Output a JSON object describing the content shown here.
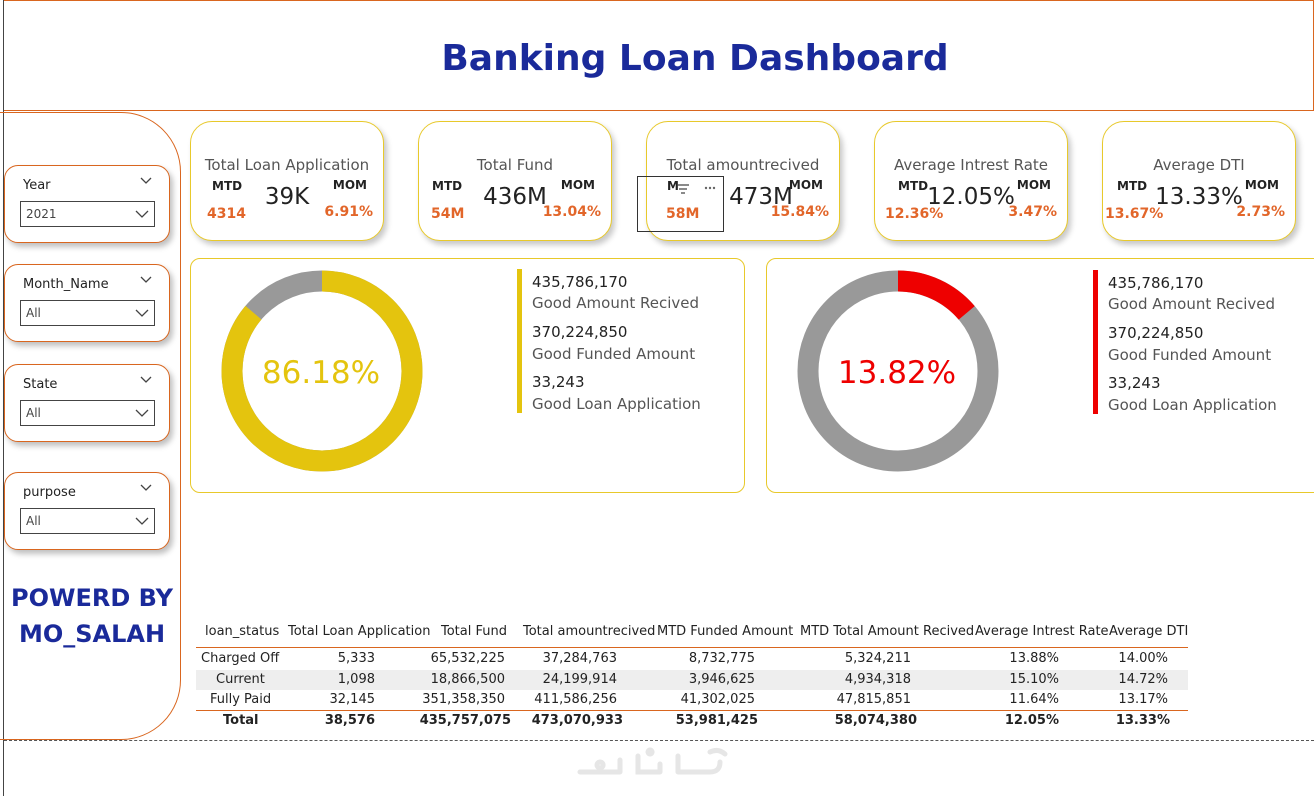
{
  "header": {
    "title": "Banking Loan Dashboard"
  },
  "slicers": [
    {
      "label": "Year",
      "value": "2021"
    },
    {
      "label": "Month_Name",
      "value": "All"
    },
    {
      "label": "State",
      "value": "All"
    },
    {
      "label": "purpose",
      "value": "All"
    }
  ],
  "powered_by": {
    "line1": "POWERD BY",
    "line2": "MO_SALAH"
  },
  "kpis": [
    {
      "title": "Total Loan Application",
      "mtd_label": "MTD",
      "mom_label": "MOM",
      "value": "39K",
      "mtd": "4314",
      "mom": "6.91%"
    },
    {
      "title": "Total Fund",
      "mtd_label": "MTD",
      "mom_label": "MOM",
      "value": "436M",
      "mtd": "54M",
      "mom": "13.04%"
    },
    {
      "title": "Total amountrecived",
      "mtd_label": "M",
      "mom_label": "MOM",
      "value": "473M",
      "mtd": "58M",
      "mom": "15.84%"
    },
    {
      "title": "Average Intrest Rate",
      "mtd_label": "MTD",
      "mom_label": "MOM",
      "value": "12.05%",
      "mtd": "12.36%",
      "mom": "3.47%"
    },
    {
      "title": "Average DTI",
      "mtd_label": "MTD",
      "mom_label": "MOM",
      "value": "13.33%",
      "mtd": "13.67%",
      "mom": "2.73%"
    }
  ],
  "good_loan": {
    "percent_label": "86.18%",
    "fraction": 0.8618,
    "color": "#e4c40e",
    "rest_color": "#999999",
    "stats": [
      {
        "value": "435,786,170",
        "label": "Good Amount Recived"
      },
      {
        "value": "370,224,850",
        "label": "Good Funded Amount"
      },
      {
        "value": "33,243",
        "label": "Good Loan Application"
      }
    ]
  },
  "bad_loan": {
    "percent_label": "13.82%",
    "fraction": 0.1382,
    "color": "#ee0000",
    "rest_color": "#999999",
    "stats": [
      {
        "value": "435,786,170",
        "label": "Good Amount Recived"
      },
      {
        "value": "370,224,850",
        "label": "Good Funded Amount"
      },
      {
        "value": "33,243",
        "label": "Good Loan Application"
      }
    ]
  },
  "table": {
    "columns": [
      "loan_status",
      "Total Loan Application",
      "Total Fund",
      "Total amountrecived",
      "MTD Funded Amount",
      "MTD Total Amount Recived",
      "Average Intrest Rate",
      "Average DTI"
    ],
    "rows": [
      [
        "Charged Off",
        "5,333",
        "65,532,225",
        "37,284,763",
        "8,732,775",
        "5,324,211",
        "13.88%",
        "14.00%"
      ],
      [
        "Current",
        "1,098",
        "18,866,500",
        "24,199,914",
        "3,946,625",
        "4,934,318",
        "15.10%",
        "14.72%"
      ],
      [
        "Fully Paid",
        "32,145",
        "351,358,350",
        "411,586,256",
        "41,302,025",
        "47,815,851",
        "11.64%",
        "13.17%"
      ]
    ],
    "total": [
      "Total",
      "38,576",
      "435,757,075",
      "473,070,933",
      "53,981,425",
      "58,074,380",
      "12.05%",
      "13.33%"
    ]
  },
  "colors": {
    "accent": "#1a2a9a",
    "border": "#d9661f",
    "kpi_value": "#e2662a",
    "kpi_border": "#e8c92b"
  }
}
